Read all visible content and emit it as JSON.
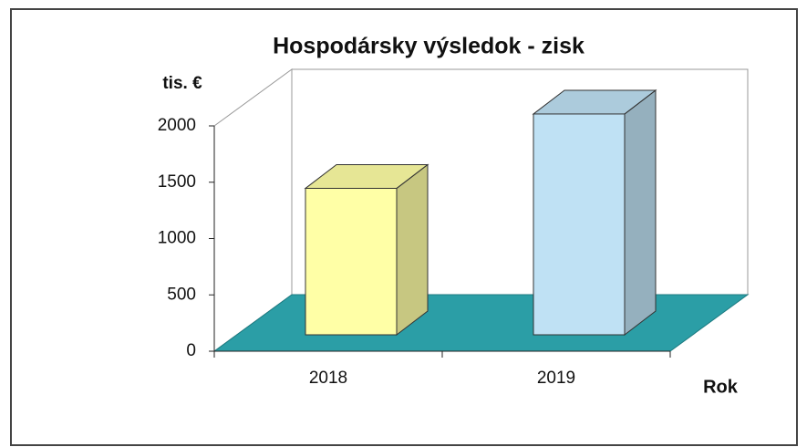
{
  "chart_data": {
    "type": "bar",
    "title": "Hospodársky výsledok - zisk",
    "y_label": "tis. €",
    "x_label": "Rok",
    "categories": [
      "2018",
      "2019"
    ],
    "values": [
      1300,
      1960
    ],
    "colors": [
      "#ffffa6",
      "#bfe1f4"
    ],
    "ylim": [
      0,
      2000
    ],
    "yticks": [
      0,
      500,
      1000,
      1500,
      2000
    ]
  }
}
